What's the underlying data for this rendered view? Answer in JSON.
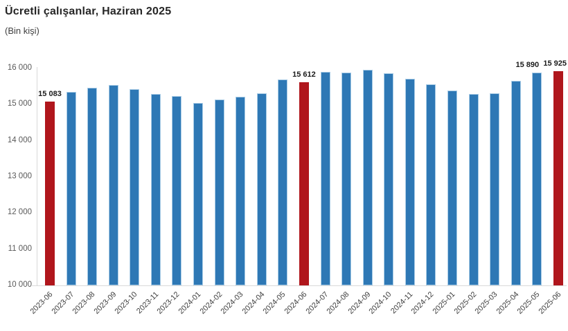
{
  "header": {
    "title": "Ücretli çalışanlar, Haziran 2025",
    "subtitle": "(Bin kişi)"
  },
  "chart_data": {
    "type": "bar",
    "title": "Ücretli çalışanlar, Haziran 2025",
    "subtitle": "(Bin kişi)",
    "unit": "Bin kişi",
    "grid": false,
    "legend": false,
    "ylim": [
      10000,
      16000
    ],
    "yticks": [
      {
        "value": 16000,
        "label": "16 000"
      },
      {
        "value": 15000,
        "label": "15 000"
      },
      {
        "value": 14000,
        "label": "14 000"
      },
      {
        "value": 13000,
        "label": "13 000"
      },
      {
        "value": 12000,
        "label": "12 000"
      },
      {
        "value": 11000,
        "label": "11 000"
      },
      {
        "value": 10000,
        "label": "10 000"
      }
    ],
    "categories": [
      "2023-06",
      "2023-07",
      "2023-08",
      "2023-09",
      "2023-10",
      "2023-11",
      "2023-12",
      "2024-01",
      "2024-02",
      "2024-03",
      "2024-04",
      "2024-05",
      "2024-06",
      "2024-07",
      "2024-08",
      "2024-09",
      "2024-10",
      "2024-11",
      "2024-12",
      "2025-01",
      "2025-02",
      "2025-03",
      "2025-04",
      "2025-05",
      "2025-06"
    ],
    "values": [
      15083,
      15350,
      15470,
      15550,
      15430,
      15290,
      15230,
      15050,
      15140,
      15210,
      15310,
      15690,
      15612,
      15900,
      15890,
      15970,
      15860,
      15720,
      15560,
      15390,
      15290,
      15310,
      15660,
      15890,
      15925
    ],
    "highlight_indices": [
      0,
      12,
      24
    ],
    "data_labels": [
      {
        "index": 0,
        "text": "15 083",
        "dx": 0
      },
      {
        "index": 12,
        "text": "15 612",
        "dx": 0
      },
      {
        "index": 23,
        "text": "15 890",
        "dx": -14
      },
      {
        "index": 24,
        "text": "15 925",
        "dx": 0
      }
    ],
    "colors": {
      "bar": "#2e78b5",
      "bar_stroke": "#a9cce6",
      "highlight": "#b0161c",
      "axis_text": "#595959",
      "category_text": "#404040",
      "axis_line": "#d9d9d9",
      "label_text": "#1a1a1a",
      "title_text": "#262626"
    }
  }
}
